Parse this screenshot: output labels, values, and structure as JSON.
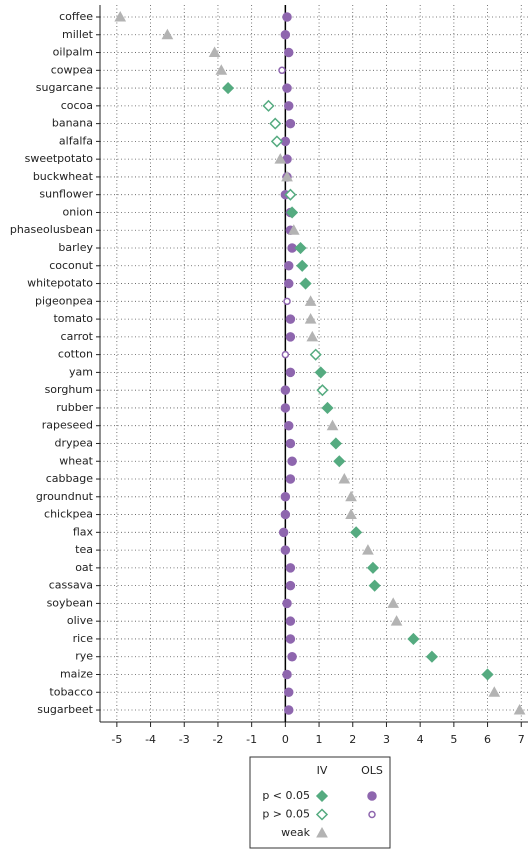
{
  "chart_data": {
    "type": "dot",
    "categories": [
      "coffee",
      "millet",
      "oilpalm",
      "cowpea",
      "sugarcane",
      "cocoa",
      "banana",
      "alfalfa",
      "sweetpotato",
      "buckwheat",
      "sunflower",
      "onion",
      "phaseolusbean",
      "barley",
      "coconut",
      "whitepotato",
      "pigeonpea",
      "tomato",
      "carrot",
      "cotton",
      "yam",
      "sorghum",
      "rubber",
      "rapeseed",
      "drypea",
      "wheat",
      "cabbage",
      "groundnut",
      "chickpea",
      "flax",
      "tea",
      "oat",
      "cassava",
      "soybean",
      "olive",
      "rice",
      "rye",
      "maize",
      "tobacco",
      "sugarbeet"
    ],
    "series": [
      {
        "name": "OLS",
        "color": "#8e66ae",
        "values": [
          0.05,
          0.0,
          0.1,
          -0.1,
          0.05,
          0.1,
          0.15,
          0.0,
          0.05,
          0.05,
          0.0,
          0.15,
          0.15,
          0.2,
          0.1,
          0.1,
          0.05,
          0.15,
          0.15,
          0.0,
          0.15,
          0.0,
          0.0,
          0.1,
          0.15,
          0.2,
          0.15,
          0.0,
          0.0,
          -0.05,
          0.0,
          0.15,
          0.15,
          0.05,
          0.15,
          0.15,
          0.2,
          0.05,
          0.1,
          0.1
        ],
        "status": [
          "p < 0.05",
          "p < 0.05",
          "p < 0.05",
          "p > 0.05",
          "p < 0.05",
          "p < 0.05",
          "p < 0.05",
          "p < 0.05",
          "p < 0.05",
          "p < 0.05",
          "p < 0.05",
          "p < 0.05",
          "p < 0.05",
          "p < 0.05",
          "p < 0.05",
          "p < 0.05",
          "p > 0.05",
          "p < 0.05",
          "p < 0.05",
          "p > 0.05",
          "p < 0.05",
          "p < 0.05",
          "p < 0.05",
          "p < 0.05",
          "p < 0.05",
          "p < 0.05",
          "p < 0.05",
          "p < 0.05",
          "p < 0.05",
          "p < 0.05",
          "p < 0.05",
          "p < 0.05",
          "p < 0.05",
          "p < 0.05",
          "p < 0.05",
          "p < 0.05",
          "p < 0.05",
          "p < 0.05",
          "p < 0.05",
          "p < 0.05"
        ]
      },
      {
        "name": "IV",
        "color": "#55ab80",
        "weak_color": "#b3b3b3",
        "values": [
          -4.9,
          -3.5,
          -2.1,
          -1.9,
          -1.7,
          -0.5,
          -0.3,
          -0.25,
          -0.15,
          0.05,
          0.15,
          0.2,
          0.25,
          0.45,
          0.5,
          0.6,
          0.75,
          0.75,
          0.8,
          0.9,
          1.05,
          1.1,
          1.25,
          1.4,
          1.5,
          1.6,
          1.75,
          1.95,
          1.95,
          2.1,
          2.45,
          2.6,
          2.65,
          3.2,
          3.3,
          3.8,
          4.35,
          6.0,
          6.2,
          6.95
        ],
        "status": [
          "weak",
          "weak",
          "weak",
          "weak",
          "p < 0.05",
          "p > 0.05",
          "p > 0.05",
          "p > 0.05",
          "weak",
          "weak",
          "p > 0.05",
          "p < 0.05",
          "weak",
          "p < 0.05",
          "p < 0.05",
          "p < 0.05",
          "weak",
          "weak",
          "weak",
          "p > 0.05",
          "p < 0.05",
          "p > 0.05",
          "p < 0.05",
          "weak",
          "p < 0.05",
          "p < 0.05",
          "weak",
          "weak",
          "weak",
          "p < 0.05",
          "weak",
          "p < 0.05",
          "p < 0.05",
          "weak",
          "weak",
          "p < 0.05",
          "p < 0.05",
          "p < 0.05",
          "weak",
          "weak"
        ]
      }
    ],
    "xlim": [
      -5.5,
      7.2
    ],
    "xticks": [
      -5,
      -4,
      -3,
      -2,
      -1,
      0,
      1,
      2,
      3,
      4,
      5,
      6,
      7
    ],
    "grid": true,
    "legend": {
      "columns": [
        "IV",
        "OLS"
      ],
      "rows": [
        "p < 0.05",
        "p > 0.05",
        "weak"
      ]
    }
  }
}
